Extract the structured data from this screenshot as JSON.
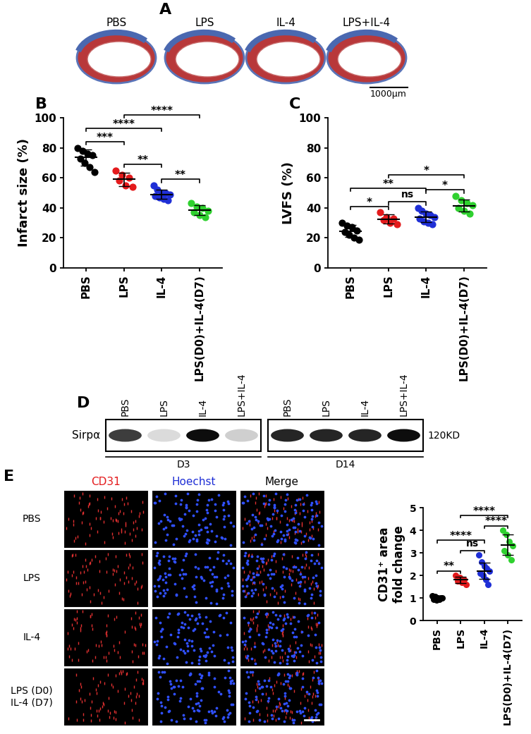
{
  "panel_labels": [
    "A",
    "B",
    "C",
    "D",
    "E"
  ],
  "panel_A": {
    "labels": [
      "PBS",
      "LPS",
      "IL-4",
      "LPS+IL-4"
    ],
    "scale_bar": "1000μm"
  },
  "chart_data": [
    {
      "type": "scatter",
      "ylabel": "Infarct size (%)",
      "categories": [
        "PBS",
        "LPS",
        "IL-4",
        "LPS(D0)+IL-4(D7)"
      ],
      "colors": [
        "#000000",
        "#e41a1c",
        "#1f2fd6",
        "#2fd12f"
      ],
      "values": [
        [
          80,
          78,
          76,
          75,
          73,
          70,
          67,
          64
        ],
        [
          65,
          62,
          60,
          58,
          55,
          54
        ],
        [
          55,
          52,
          50,
          50,
          49,
          48,
          47,
          46,
          45
        ],
        [
          43,
          41,
          40,
          38,
          37,
          35,
          34
        ]
      ],
      "mean": [
        73.5,
        59,
        49,
        38.5
      ],
      "sd": [
        5.5,
        4.5,
        3,
        3.3
      ],
      "ylim": [
        0,
        100
      ],
      "yticks": [
        0,
        20,
        40,
        60,
        80,
        100
      ],
      "comparisons": [
        {
          "from": "PBS",
          "to": "LPS",
          "label": "***"
        },
        {
          "from": "LPS",
          "to": "IL-4",
          "label": "**"
        },
        {
          "from": "IL-4",
          "to": "LPS(D0)+IL-4(D7)",
          "label": "**"
        },
        {
          "from": "PBS",
          "to": "IL-4",
          "label": "****"
        },
        {
          "from": "LPS",
          "to": "LPS(D0)+IL-4(D7)",
          "label": "****"
        }
      ]
    },
    {
      "type": "scatter",
      "ylabel": "LVFS (%)",
      "categories": [
        "PBS",
        "LPS",
        "IL-4",
        "LPS(D0)+IL-4(D7)"
      ],
      "colors": [
        "#000000",
        "#e41a1c",
        "#1f2fd6",
        "#2fd12f"
      ],
      "values": [
        [
          30,
          28,
          27,
          25,
          24,
          22,
          20,
          19
        ],
        [
          37,
          34,
          33,
          32,
          30,
          29
        ],
        [
          40,
          38,
          36,
          35,
          34,
          33,
          31,
          30,
          29
        ],
        [
          48,
          45,
          43,
          42,
          40,
          38,
          36
        ]
      ],
      "mean": [
        24.5,
        32.5,
        34,
        41.5
      ],
      "sd": [
        4,
        3,
        3.5,
        4
      ],
      "ylim": [
        0,
        100
      ],
      "yticks": [
        0,
        20,
        40,
        60,
        80,
        100
      ],
      "comparisons": [
        {
          "from": "PBS",
          "to": "LPS",
          "label": "*"
        },
        {
          "from": "LPS",
          "to": "IL-4",
          "label": "ns"
        },
        {
          "from": "IL-4",
          "to": "LPS(D0)+IL-4(D7)",
          "label": "*"
        },
        {
          "from": "PBS",
          "to": "IL-4",
          "label": "**"
        },
        {
          "from": "LPS",
          "to": "LPS(D0)+IL-4(D7)",
          "label": "*"
        }
      ]
    },
    {
      "type": "scatter",
      "ylabel": "CD31⁺ area\nfold change",
      "categories": [
        "PBS",
        "LPS",
        "IL-4",
        "LPS(D0)+IL-4(D7)"
      ],
      "colors": [
        "#000000",
        "#e41a1c",
        "#1f2fd6",
        "#2fd12f"
      ],
      "values": [
        [
          1.1,
          1.05,
          1.0,
          1.0,
          0.95,
          0.9,
          0.95,
          1.0
        ],
        [
          2.0,
          1.9,
          1.8,
          1.75,
          1.7,
          1.6
        ],
        [
          2.9,
          2.6,
          2.4,
          2.3,
          2.2,
          2.1,
          2.0,
          1.8,
          1.6
        ],
        [
          4.0,
          3.8,
          3.5,
          3.3,
          3.1,
          2.9,
          2.7
        ]
      ],
      "mean": [
        1.0,
        1.8,
        2.2,
        3.35
      ],
      "sd": [
        0.07,
        0.15,
        0.35,
        0.45
      ],
      "ylim": [
        0,
        5
      ],
      "yticks": [
        0,
        1,
        2,
        3,
        4,
        5
      ],
      "comparisons": [
        {
          "from": "PBS",
          "to": "LPS",
          "label": "**"
        },
        {
          "from": "LPS",
          "to": "IL-4",
          "label": "ns"
        },
        {
          "from": "IL-4",
          "to": "LPS(D0)+IL-4(D7)",
          "label": "****"
        },
        {
          "from": "PBS",
          "to": "IL-4",
          "label": "****"
        },
        {
          "from": "LPS",
          "to": "LPS(D0)+IL-4(D7)",
          "label": "****"
        }
      ]
    }
  ],
  "panel_D": {
    "protein": "Sirpα",
    "lanes": [
      "PBS",
      "LPS",
      "IL-4",
      "LPS+IL-4"
    ],
    "timepoints": [
      "D3",
      "D14"
    ],
    "band_intensity": [
      [
        0.8,
        0.15,
        1.0,
        0.2
      ],
      [
        0.9,
        0.9,
        0.9,
        1.0
      ]
    ],
    "mw": "120KD"
  },
  "panel_E_images": {
    "channels": [
      "CD31",
      "Hoechst",
      "Merge"
    ],
    "channel_colors": [
      "#e41a1c",
      "#1f2fd6",
      "#000000"
    ],
    "rows": [
      "PBS",
      "LPS",
      "IL-4",
      "LPS (D0)\nIL-4 (D7)"
    ]
  }
}
